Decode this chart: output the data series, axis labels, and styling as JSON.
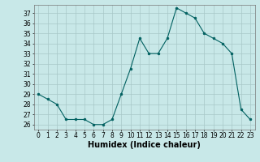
{
  "x": [
    0,
    1,
    2,
    3,
    4,
    5,
    6,
    7,
    8,
    9,
    10,
    11,
    12,
    13,
    14,
    15,
    16,
    17,
    18,
    19,
    20,
    21,
    22,
    23
  ],
  "y": [
    29,
    28.5,
    28,
    26.5,
    26.5,
    26.5,
    26,
    26,
    26.5,
    29,
    31.5,
    34.5,
    33,
    33,
    34.5,
    37.5,
    37,
    36.5,
    35,
    34.5,
    34,
    33,
    27.5,
    26.5
  ],
  "line_color": "#006060",
  "marker_color": "#006060",
  "bg_color": "#c8e8e8",
  "grid_color": "#a8c8c8",
  "xlabel": "Humidex (Indice chaleur)",
  "ylim": [
    25.5,
    37.8
  ],
  "xlim": [
    -0.5,
    23.5
  ],
  "yticks": [
    26,
    27,
    28,
    29,
    30,
    31,
    32,
    33,
    34,
    35,
    36,
    37
  ],
  "xticks": [
    0,
    1,
    2,
    3,
    4,
    5,
    6,
    7,
    8,
    9,
    10,
    11,
    12,
    13,
    14,
    15,
    16,
    17,
    18,
    19,
    20,
    21,
    22,
    23
  ],
  "title_fontsize": 6,
  "label_fontsize": 7,
  "tick_fontsize": 5.5
}
